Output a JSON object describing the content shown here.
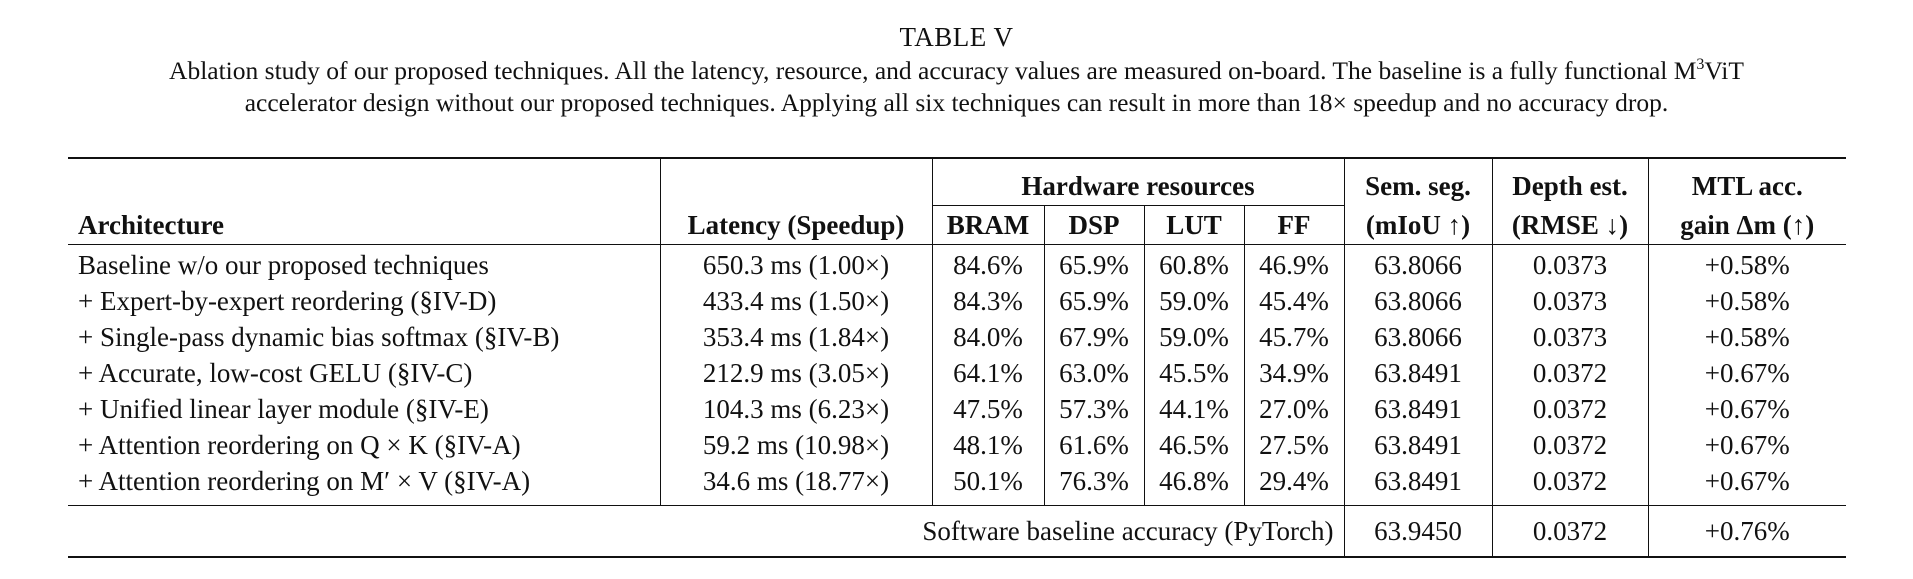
{
  "table_label": "TABLE V",
  "caption_line1_pre": "Ablation study of our proposed techniques. All the latency, resource, and accuracy values are measured on-board. The baseline is a fully functional M",
  "caption_sup": "3",
  "caption_line1_post": "ViT",
  "caption_line2": "accelerator design without our proposed techniques. Applying all six techniques can result in more than 18× speedup and no accuracy drop.",
  "header": {
    "architecture": "Architecture",
    "latency": "Latency (Speedup)",
    "hardware_resources": "Hardware resources",
    "bram": "BRAM",
    "dsp": "DSP",
    "lut": "LUT",
    "ff": "FF",
    "sem_seg_top": "Sem. seg.",
    "sem_seg_bottom": "(mIoU ↑)",
    "depth_top": "Depth est.",
    "depth_bottom": "(RMSE ↓)",
    "mtl_top": "MTL acc.",
    "mtl_bottom": "gain Δm (↑)"
  },
  "rows": [
    {
      "architecture": "Baseline w/o our proposed techniques",
      "latency": "650.3 ms (1.00×)",
      "bram": "84.6%",
      "dsp": "65.9%",
      "lut": "60.8%",
      "ff": "46.9%",
      "miou": "63.8066",
      "rmse": "0.0373",
      "mtl": "+0.58%"
    },
    {
      "architecture": "+ Expert-by-expert reordering (§IV-D)",
      "latency": "433.4 ms (1.50×)",
      "bram": "84.3%",
      "dsp": "65.9%",
      "lut": "59.0%",
      "ff": "45.4%",
      "miou": "63.8066",
      "rmse": "0.0373",
      "mtl": "+0.58%"
    },
    {
      "architecture": "+ Single-pass dynamic bias softmax (§IV-B)",
      "latency": "353.4 ms (1.84×)",
      "bram": "84.0%",
      "dsp": "67.9%",
      "lut": "59.0%",
      "ff": "45.7%",
      "miou": "63.8066",
      "rmse": "0.0373",
      "mtl": "+0.58%"
    },
    {
      "architecture": "+ Accurate, low-cost GELU (§IV-C)",
      "latency": "212.9 ms (3.05×)",
      "bram": "64.1%",
      "dsp": "63.0%",
      "lut": "45.5%",
      "ff": "34.9%",
      "miou": "63.8491",
      "rmse": "0.0372",
      "mtl": "+0.67%"
    },
    {
      "architecture": "+ Unified linear layer module (§IV-E)",
      "latency": "104.3 ms (6.23×)",
      "bram": "47.5%",
      "dsp": "57.3%",
      "lut": "44.1%",
      "ff": "27.0%",
      "miou": "63.8491",
      "rmse": "0.0372",
      "mtl": "+0.67%"
    },
    {
      "architecture": "+ Attention reordering on Q × K (§IV-A)",
      "latency": "59.2 ms (10.98×)",
      "bram": "48.1%",
      "dsp": "61.6%",
      "lut": "46.5%",
      "ff": "27.5%",
      "miou": "63.8491",
      "rmse": "0.0372",
      "mtl": "+0.67%"
    },
    {
      "architecture": "+ Attention reordering on M′ × V (§IV-A)",
      "latency": "34.6 ms (18.77×)",
      "bram": "50.1%",
      "dsp": "76.3%",
      "lut": "46.8%",
      "ff": "29.4%",
      "miou": "63.8491",
      "rmse": "0.0372",
      "mtl": "+0.67%"
    }
  ],
  "software_baseline": {
    "label": "Software baseline accuracy (PyTorch)",
    "miou": "63.9450",
    "rmse": "0.0372",
    "mtl": "+0.76%"
  }
}
